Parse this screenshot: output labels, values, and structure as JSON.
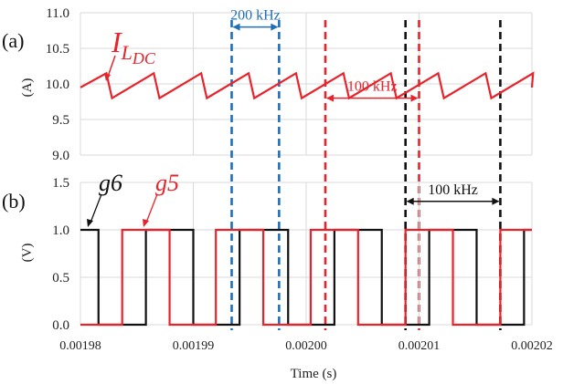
{
  "chart_data": [
    {
      "panel_label": "(a)",
      "type": "line",
      "ylabel": "(A)",
      "xlim": [
        0.00198,
        0.00202
      ],
      "ylim": [
        9.0,
        11.0
      ],
      "yticks": [
        "11.0",
        "10.5",
        "10.0",
        "9.5",
        "9.0"
      ],
      "grid": true,
      "series": [
        {
          "name": "I_LDC",
          "color": "#e8232c",
          "x": [
            0.00198,
            0.0019823,
            0.0019828,
            0.0019865,
            0.001987,
            0.0019907,
            0.0019912,
            0.0019949,
            0.0019954,
            0.0019991,
            0.0019996,
            0.0020033,
            0.0020038,
            0.0020075,
            0.002008,
            0.0020117,
            0.0020122,
            0.0020159,
            0.0020164,
            0.0020201,
            0.00202
          ],
          "y": [
            9.95,
            10.15,
            9.8,
            10.15,
            9.8,
            10.15,
            9.8,
            10.15,
            9.8,
            10.15,
            9.8,
            10.15,
            9.8,
            10.15,
            9.8,
            10.15,
            9.8,
            10.15,
            9.8,
            10.15,
            9.95
          ]
        }
      ],
      "annotations": [
        {
          "text": "200 kHz",
          "color": "#1f6fb8",
          "x_from": 0.0019934,
          "x_to": 0.0019976,
          "y": 10.8
        },
        {
          "text": "100 kHz",
          "color": "#e8232c",
          "x_from": 0.0020017,
          "x_to": 0.00201,
          "y": 9.8
        }
      ],
      "series_label": {
        "main": "I",
        "sub": "L",
        "sub2": "DC",
        "color": "#e8232c"
      }
    },
    {
      "panel_label": "(b)",
      "type": "line",
      "xlabel": "Time (s)",
      "ylabel": "(V)",
      "xlim": [
        0.00198,
        0.00202
      ],
      "ylim": [
        0.0,
        1.5
      ],
      "yticks": [
        "1.5",
        "1.0",
        "0.5",
        "0.0"
      ],
      "xticks": [
        "0.00198",
        "0.00199",
        "0.00200",
        "0.00201",
        "0.00202"
      ],
      "grid": true,
      "series": [
        {
          "name": "g6",
          "color": "#111111",
          "x": [
            0.00198,
            0.0019816,
            0.0019816,
            0.0019858,
            0.0019858,
            0.00199,
            0.00199,
            0.0019941,
            0.0019941,
            0.0019984,
            0.0019984,
            0.0020025,
            0.0020025,
            0.0020067,
            0.0020067,
            0.0020109,
            0.0020109,
            0.0020151,
            0.0020151,
            0.0020193,
            0.0020193,
            0.00202
          ],
          "y": [
            1,
            1,
            0,
            0,
            1,
            1,
            0,
            0,
            1,
            1,
            0,
            0,
            1,
            1,
            0,
            0,
            1,
            1,
            0,
            0,
            1,
            1
          ]
        },
        {
          "name": "g5",
          "color": "#e8232c",
          "x": [
            0.00198,
            0.0019837,
            0.0019837,
            0.0019879,
            0.0019879,
            0.001992,
            0.001992,
            0.0019962,
            0.0019962,
            0.0020004,
            0.0020004,
            0.0020046,
            0.0020046,
            0.0020088,
            0.0020088,
            0.002013,
            0.002013,
            0.0020172,
            0.0020172,
            0.00202
          ],
          "y": [
            0,
            0,
            1,
            1,
            0,
            0,
            1,
            1,
            0,
            0,
            1,
            1,
            0,
            0,
            1,
            1,
            0,
            0,
            1,
            1
          ]
        }
      ],
      "annotations": [
        {
          "text": "100 kHz",
          "color": "#111111",
          "x_from": 0.0020088,
          "x_to": 0.0020172,
          "y": 1.3
        }
      ],
      "signal_labels": [
        {
          "text": "g6",
          "color": "#111111"
        },
        {
          "text": "g5",
          "color": "#e8232c"
        }
      ]
    }
  ]
}
